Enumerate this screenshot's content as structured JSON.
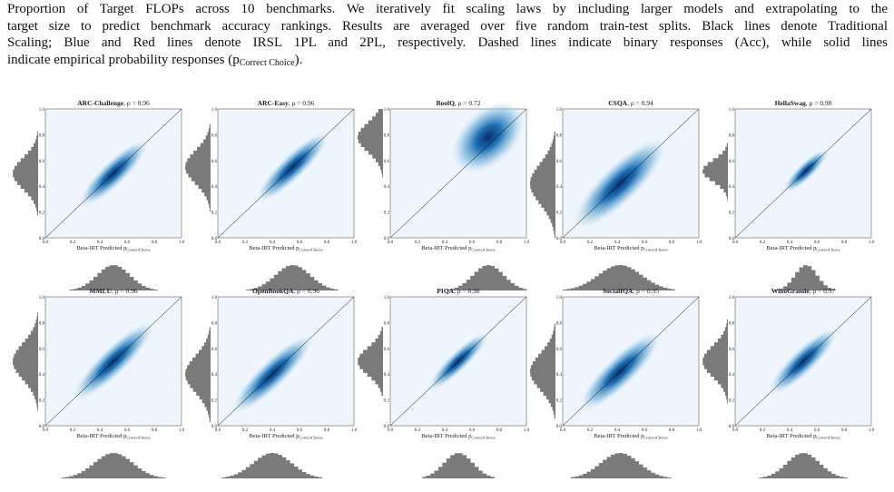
{
  "caption": {
    "lines": [
      "Proportion of Target FLOPs across 10 benchmarks. We iteratively fit scaling laws by including larger models and extrapolating to the",
      "target size to predict benchmark accuracy rankings. Results are averaged over five random train-test splits. Black lines denote Traditional",
      "Scaling; Blue and Red lines denote IRSL 1PL and 2PL, respectively. Dashed lines indicate binary responses (Acc), while solid lines"
    ],
    "last": {
      "pre": "indicate empirical probability responses (p",
      "sub": "Correct Choice",
      "post": ")."
    }
  },
  "figure": {
    "ticks": [
      "0.0",
      "0.2",
      "0.4",
      "0.6",
      "0.8",
      "1.0"
    ],
    "xlabel": "Beta-IRT Predicted p",
    "xlabel_sub": "CorrectChoice",
    "panels": [
      {
        "name": "ARC-Challenge",
        "rho": ", ρ = 0.96"
      },
      {
        "name": "ARC-Easy",
        "rho": ", ρ = 0.96"
      },
      {
        "name": "BoolQ",
        "rho": ", ρ = 0.72"
      },
      {
        "name": "CSQA",
        "rho": ", ρ = 0.94"
      },
      {
        "name": "HellaSwag",
        "rho": ", ρ = 0.98"
      },
      {
        "name": "MMLU",
        "rho": ", ρ = 0.96"
      },
      {
        "name": "OpenBookQA",
        "rho": ", ρ = 0.96"
      },
      {
        "name": "PIQA",
        "rho": ", ρ = 0.98"
      },
      {
        "name": "SocialIQA",
        "rho": ", ρ = 0.95"
      },
      {
        "name": "WinoGrande",
        "rho": ", ρ = 0.97"
      }
    ]
  }
}
